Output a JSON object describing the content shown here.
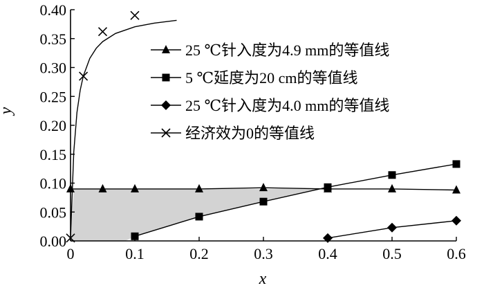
{
  "chart_data": {
    "type": "line",
    "xlabel": "x",
    "ylabel": "y",
    "xlim": [
      0,
      0.6
    ],
    "ylim": [
      0,
      0.4
    ],
    "xticks": [
      "0",
      "0.1",
      "0.2",
      "0.3",
      "0.4",
      "0.5",
      "0.6"
    ],
    "yticks": [
      "0.00",
      "0.05",
      "0.10",
      "0.15",
      "0.20",
      "0.25",
      "0.30",
      "0.35",
      "0.40"
    ],
    "legend_position": "top-right",
    "grid": false,
    "shaded_region_color": "#d3d3d3",
    "series": [
      {
        "name": "25 ℃针入度为4.9 mm的等值线",
        "marker": "triangle",
        "x": [
          0,
          0.05,
          0.1,
          0.2,
          0.3,
          0.4,
          0.5,
          0.6
        ],
        "y": [
          0.09,
          0.09,
          0.09,
          0.09,
          0.092,
          0.09,
          0.09,
          0.088
        ]
      },
      {
        "name": "5 ℃延度为20 cm的等值线",
        "marker": "square",
        "x": [
          0.1,
          0.2,
          0.3,
          0.4,
          0.5,
          0.6
        ],
        "y": [
          0.008,
          0.042,
          0.068,
          0.093,
          0.114,
          0.133
        ]
      },
      {
        "name": "25 ℃针入度为4.0 mm的等值线",
        "marker": "diamond",
        "x": [
          0.4,
          0.5,
          0.6
        ],
        "y": [
          0.005,
          0.023,
          0.035
        ]
      },
      {
        "name": "经济效为0的等值线",
        "marker": "x",
        "x": [
          0,
          0.02,
          0.05,
          0.1,
          0.165
        ],
        "y": [
          0.005,
          0.285,
          0.362,
          0.39,
          0.398
        ],
        "marker_indices": [
          0,
          1,
          2,
          3
        ]
      }
    ]
  }
}
